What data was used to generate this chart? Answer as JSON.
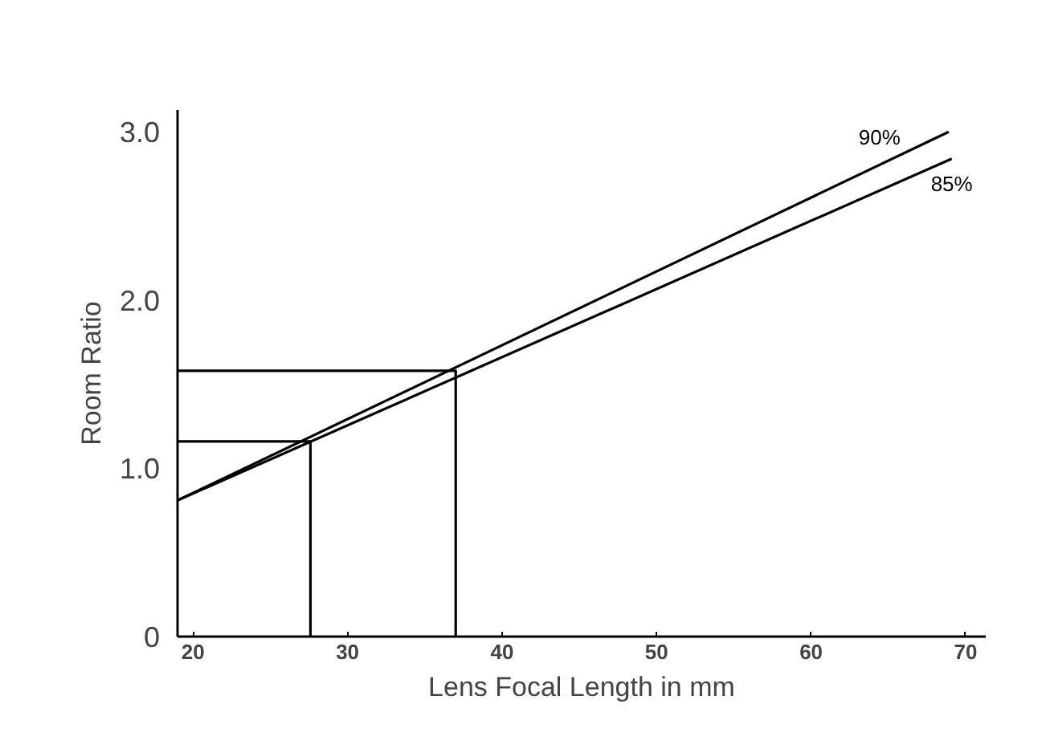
{
  "chart_data": {
    "type": "line",
    "xlabel": "Lens Focal Length in mm",
    "ylabel": "Room Ratio",
    "xlim": [
      19,
      71.3
    ],
    "ylim": [
      0,
      3.13
    ],
    "xticks": [
      20,
      30,
      40,
      50,
      60,
      70
    ],
    "yticks": [
      0,
      {
        "value": 1,
        "label": "1.0"
      },
      {
        "value": 2,
        "label": "2.0"
      },
      {
        "value": 3,
        "label": "3.0"
      }
    ],
    "grid": false,
    "marker": "none",
    "line_style": "solid",
    "series": [
      {
        "name": "90%",
        "color": "#000000",
        "x": [
          19,
          68.9
        ],
        "values": [
          0.81,
          3.0
        ]
      },
      {
        "name": "85%",
        "color": "#000000",
        "x": [
          19,
          69.1
        ],
        "values": [
          0.81,
          2.84
        ]
      },
      {
        "color": "#000000",
        "x": [
          19,
          27.6,
          27.6
        ],
        "values": [
          1.16,
          1.16,
          0
        ]
      },
      {
        "color": "#000000",
        "x": [
          19,
          37.0,
          37.0
        ],
        "values": [
          1.58,
          1.58,
          0
        ]
      }
    ]
  }
}
